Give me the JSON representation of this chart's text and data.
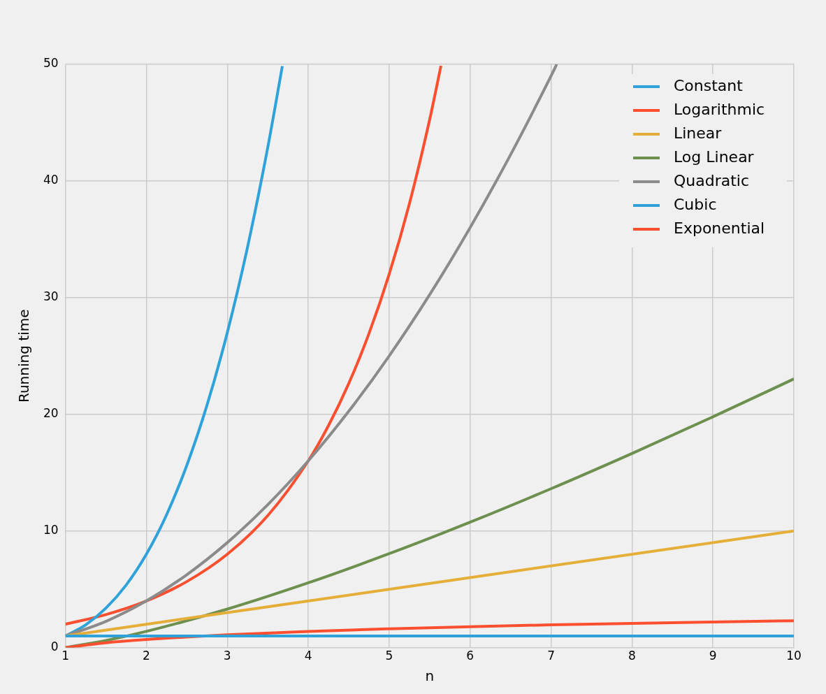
{
  "chart_data": {
    "type": "line",
    "xlabel": "n",
    "ylabel": "Running time",
    "xlim": [
      1,
      10
    ],
    "ylim": [
      0,
      50
    ],
    "xticks": [
      1,
      2,
      3,
      4,
      5,
      6,
      7,
      8,
      9,
      10
    ],
    "yticks": [
      0,
      10,
      20,
      30,
      40,
      50
    ],
    "grid": true,
    "legend": "top right",
    "line_style": "solid",
    "marker": "none",
    "series": [
      {
        "name": "Constant",
        "color": "#30a2da",
        "x": [
          1,
          10
        ],
        "values": [
          1,
          1
        ]
      },
      {
        "name": "Logarithmic",
        "color": "#fc4f30",
        "x": [
          1,
          1.5,
          2,
          3,
          4,
          5,
          6,
          7,
          8,
          9,
          10
        ],
        "values": [
          0,
          0.41,
          0.69,
          1.1,
          1.39,
          1.61,
          1.79,
          1.95,
          2.08,
          2.2,
          2.3
        ]
      },
      {
        "name": "Linear",
        "color": "#e5ae38",
        "x": [
          1,
          10
        ],
        "values": [
          1,
          10
        ]
      },
      {
        "name": "Log Linear",
        "color": "#6d904f",
        "x": [
          1,
          1.5,
          2,
          3,
          4,
          5,
          6,
          7,
          8,
          9,
          10
        ],
        "values": [
          0,
          0.61,
          1.39,
          3.3,
          5.55,
          8.05,
          10.75,
          13.62,
          16.64,
          19.78,
          23.03
        ]
      },
      {
        "name": "Quadratic",
        "color": "#8b8b8b",
        "x": [
          1,
          1.5,
          2,
          2.5,
          3,
          3.5,
          4,
          4.5,
          5,
          5.5,
          6,
          6.5,
          7,
          7.07
        ],
        "values": [
          1,
          2.25,
          4,
          6.25,
          9,
          12.25,
          16,
          20.25,
          25,
          30.25,
          36,
          42.25,
          49,
          50
        ]
      },
      {
        "name": "Cubic",
        "color": "#30a2da",
        "x": [
          1,
          1.25,
          1.5,
          1.75,
          2,
          2.25,
          2.5,
          2.75,
          3,
          3.25,
          3.5,
          3.68
        ],
        "values": [
          1,
          1.95,
          3.38,
          5.36,
          8,
          11.39,
          15.63,
          20.8,
          27,
          34.33,
          42.88,
          49.84
        ]
      },
      {
        "name": "Exponential",
        "color": "#fc4f30",
        "x": [
          1,
          1.5,
          2,
          2.5,
          3,
          3.5,
          4,
          4.25,
          4.5,
          4.75,
          5,
          5.25,
          5.5,
          5.64
        ],
        "values": [
          2,
          2.83,
          4,
          5.66,
          8,
          11.31,
          16,
          19.03,
          22.63,
          26.91,
          32,
          38.05,
          45.25,
          49.87
        ]
      }
    ]
  }
}
